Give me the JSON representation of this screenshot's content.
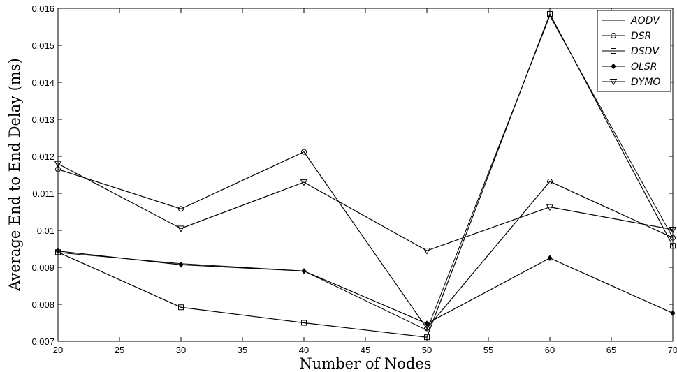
{
  "chart_data": {
    "type": "line",
    "title": "",
    "xlabel": "Number of Nodes",
    "ylabel": "Average End to End Delay (ms)",
    "x": [
      20,
      30,
      40,
      50,
      60,
      70
    ],
    "xlim": [
      20,
      70
    ],
    "ylim": [
      0.007,
      0.016
    ],
    "xticks": [
      "20",
      "25",
      "30",
      "35",
      "40",
      "45",
      "50",
      "55",
      "60",
      "65",
      "70"
    ],
    "yticks": [
      "0.007",
      "0.008",
      "0.009",
      "0.01",
      "0.011",
      "0.012",
      "0.013",
      "0.014",
      "0.015",
      "0.016"
    ],
    "grid": false,
    "legend_position": "top-right",
    "series": [
      {
        "name": "AODV",
        "marker": "none",
        "values": [
          0.0094,
          0.0091,
          0.0089,
          0.0073,
          0.0158,
          0.0098
        ]
      },
      {
        "name": "DSR",
        "marker": "circle",
        "values": [
          0.01165,
          0.01058,
          0.01212,
          0.00735,
          0.01132,
          0.0098
        ]
      },
      {
        "name": "DSDV",
        "marker": "square",
        "values": [
          0.00941,
          0.00792,
          0.0075,
          0.00711,
          0.01585,
          0.00958
        ]
      },
      {
        "name": "OLSR",
        "marker": "diamond",
        "values": [
          0.00944,
          0.00907,
          0.0089,
          0.00748,
          0.00925,
          0.00776
        ]
      },
      {
        "name": "DYMO",
        "marker": "triangle-down",
        "values": [
          0.0118,
          0.01005,
          0.0113,
          0.00945,
          0.01063,
          0.01002
        ]
      }
    ]
  }
}
